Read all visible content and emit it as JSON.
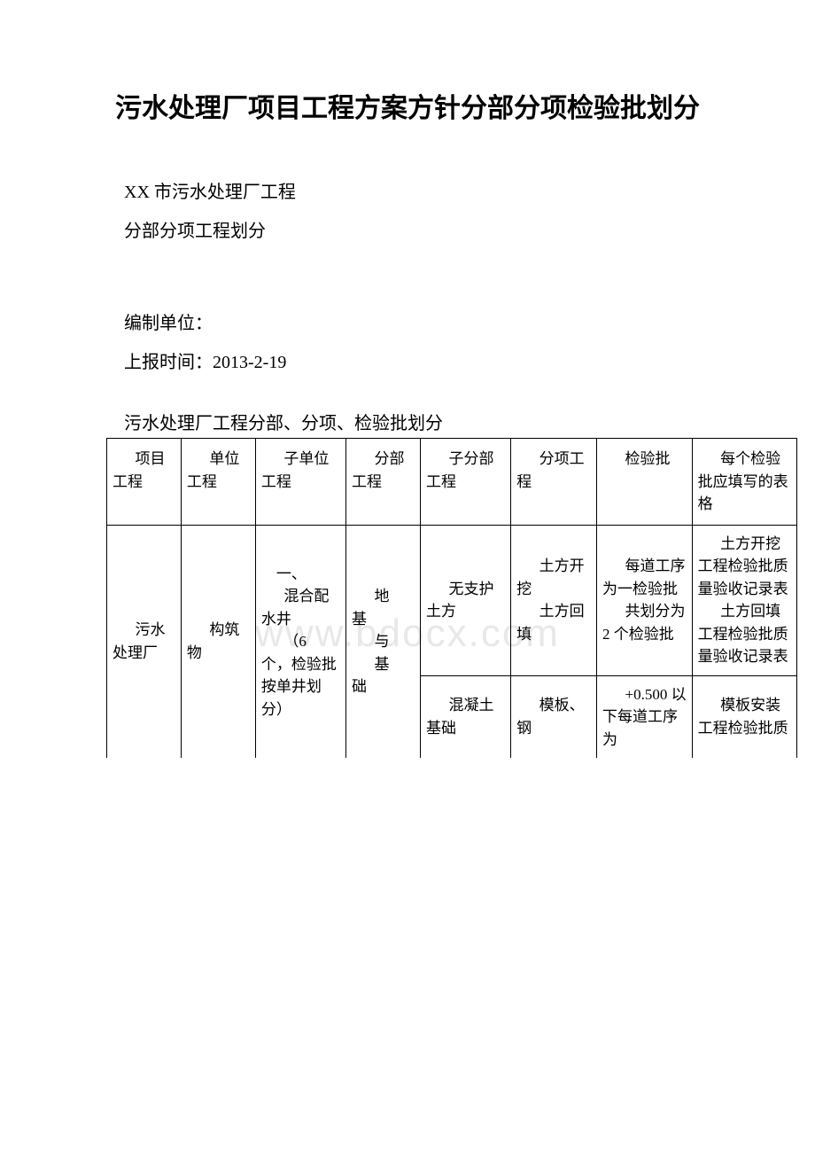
{
  "page": {
    "title": "污水处理厂项目工程方案方针分部分项检验批划分",
    "line1": "XX 市污水处理厂工程",
    "line2": "分部分项工程划分",
    "line3": "编制单位：",
    "line4": "上报时间：2013-2-19",
    "table_caption": "污水处理厂工程分部、分项、检验批划分",
    "watermark": "www.bdocx.com"
  },
  "table": {
    "headers": {
      "c1": "项目工程",
      "c2": "单位工程",
      "c3": "子单位工程",
      "c4": "分部工程",
      "c5": "子分部工程",
      "c6": "分项工程",
      "c7": "检验批",
      "c8": "每个检验批应填写的表格"
    },
    "row1": {
      "c1": "污水处理厂",
      "c2": "构筑物",
      "c3_a": "一、",
      "c3_b": "混合配水井",
      "c3_c": "（6 个，检验批按单井划分）",
      "c4": "地基与基础",
      "c5": "无支护土方",
      "c6_a": "土方开挖",
      "c6_b": "土方回填",
      "c7_a": "每道工序为一检验批",
      "c7_b": "共划分为2 个检验批",
      "c8_a": "土方开挖工程检验批质量验收记录表",
      "c8_b": "土方回填工程检验批质量验收记录表"
    },
    "row2": {
      "c5": "混凝土基础",
      "c6": "模板、钢",
      "c7": "+0.500 以下每道工序为",
      "c8": "模板安装工程检验批质"
    }
  },
  "style": {
    "text_color": "#000000",
    "background": "#ffffff",
    "watermark_color": "#e8e8e8",
    "border_color": "#000000",
    "title_fontsize": 30,
    "body_fontsize": 20,
    "table_fontsize": 17
  }
}
